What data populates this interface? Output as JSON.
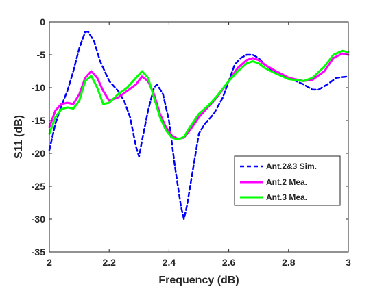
{
  "chart_data": {
    "type": "line",
    "title": "",
    "xlabel": "Frequency (dB)",
    "ylabel": "S11 (dB)",
    "xlim": [
      2,
      3
    ],
    "ylim": [
      -35,
      0
    ],
    "xticks": [
      2,
      2.2,
      2.4,
      2.6,
      2.8,
      3
    ],
    "xtick_labels": [
      "2",
      "2.2",
      "2.4",
      "2.6",
      "2.8",
      "3"
    ],
    "yticks": [
      0,
      -5,
      -10,
      -15,
      -20,
      -25,
      -30,
      -35
    ],
    "ytick_labels": [
      "0",
      "-5",
      "-10",
      "-15",
      "-20",
      "-25",
      "-30",
      "-35"
    ],
    "grid": false,
    "legend_position": "bottom-right",
    "series": [
      {
        "name": "Ant.2&3 Sim.",
        "color": "#0000ff",
        "style": "dashed",
        "x": [
          2.0,
          2.02,
          2.04,
          2.06,
          2.08,
          2.1,
          2.12,
          2.13,
          2.15,
          2.17,
          2.2,
          2.23,
          2.25,
          2.27,
          2.29,
          2.3,
          2.31,
          2.33,
          2.35,
          2.36,
          2.38,
          2.4,
          2.42,
          2.44,
          2.45,
          2.46,
          2.48,
          2.5,
          2.52,
          2.55,
          2.58,
          2.6,
          2.62,
          2.64,
          2.66,
          2.68,
          2.7,
          2.72,
          2.75,
          2.8,
          2.85,
          2.88,
          2.9,
          2.93,
          2.96,
          3.0
        ],
        "y": [
          -19.5,
          -15.5,
          -12.8,
          -10.5,
          -7.5,
          -4,
          -1.5,
          -1.5,
          -3,
          -6,
          -9,
          -10.5,
          -12,
          -14.5,
          -19,
          -20.5,
          -18,
          -13.5,
          -10,
          -9.5,
          -11,
          -15,
          -22,
          -28,
          -30,
          -28,
          -22.5,
          -17,
          -15.5,
          -14,
          -11.5,
          -9,
          -6.5,
          -5.5,
          -5,
          -5,
          -5.5,
          -6.5,
          -7.5,
          -8.5,
          -9.5,
          -10.3,
          -10.3,
          -9.5,
          -8.5,
          -8.3
        ]
      },
      {
        "name": "Ant.2 Mea.",
        "color": "#ff00ff",
        "style": "solid",
        "x": [
          2.0,
          2.02,
          2.04,
          2.06,
          2.08,
          2.1,
          2.12,
          2.14,
          2.16,
          2.18,
          2.2,
          2.23,
          2.26,
          2.29,
          2.31,
          2.33,
          2.35,
          2.37,
          2.39,
          2.41,
          2.43,
          2.45,
          2.47,
          2.5,
          2.53,
          2.56,
          2.6,
          2.63,
          2.66,
          2.68,
          2.7,
          2.72,
          2.75,
          2.78,
          2.8,
          2.85,
          2.88,
          2.92,
          2.95,
          2.98,
          3.0
        ],
        "y": [
          -16,
          -13.5,
          -12.5,
          -12.3,
          -12.5,
          -11,
          -8.5,
          -7.5,
          -8.5,
          -10.5,
          -12,
          -11.5,
          -10.5,
          -9.5,
          -8.3,
          -9,
          -11,
          -14,
          -16,
          -17.3,
          -17.8,
          -17.6,
          -16.5,
          -14.5,
          -13,
          -11.5,
          -9,
          -7,
          -5.8,
          -5.5,
          -5.8,
          -6.5,
          -7.3,
          -8,
          -8.5,
          -9,
          -8.8,
          -7.5,
          -5.5,
          -4.8,
          -5
        ]
      },
      {
        "name": "Ant.3 Mea.",
        "color": "#00ff00",
        "style": "solid",
        "x": [
          2.0,
          2.02,
          2.04,
          2.06,
          2.08,
          2.1,
          2.12,
          2.14,
          2.16,
          2.18,
          2.2,
          2.23,
          2.26,
          2.29,
          2.31,
          2.33,
          2.35,
          2.37,
          2.39,
          2.41,
          2.43,
          2.45,
          2.47,
          2.5,
          2.53,
          2.56,
          2.6,
          2.63,
          2.66,
          2.68,
          2.7,
          2.72,
          2.75,
          2.78,
          2.8,
          2.85,
          2.88,
          2.92,
          2.95,
          2.98,
          3.0
        ],
        "y": [
          -17,
          -14.5,
          -13.3,
          -13,
          -13.2,
          -12,
          -9,
          -8.2,
          -10,
          -12.5,
          -12.3,
          -11,
          -10,
          -8.5,
          -7.5,
          -8.5,
          -11.5,
          -14.5,
          -16.5,
          -17.6,
          -17.9,
          -17.5,
          -16,
          -14,
          -12.8,
          -11.3,
          -9,
          -7.5,
          -6.3,
          -6,
          -6.3,
          -7,
          -7.7,
          -8.3,
          -8.7,
          -9,
          -8.5,
          -6.8,
          -5,
          -4.4,
          -4.6
        ]
      }
    ]
  }
}
